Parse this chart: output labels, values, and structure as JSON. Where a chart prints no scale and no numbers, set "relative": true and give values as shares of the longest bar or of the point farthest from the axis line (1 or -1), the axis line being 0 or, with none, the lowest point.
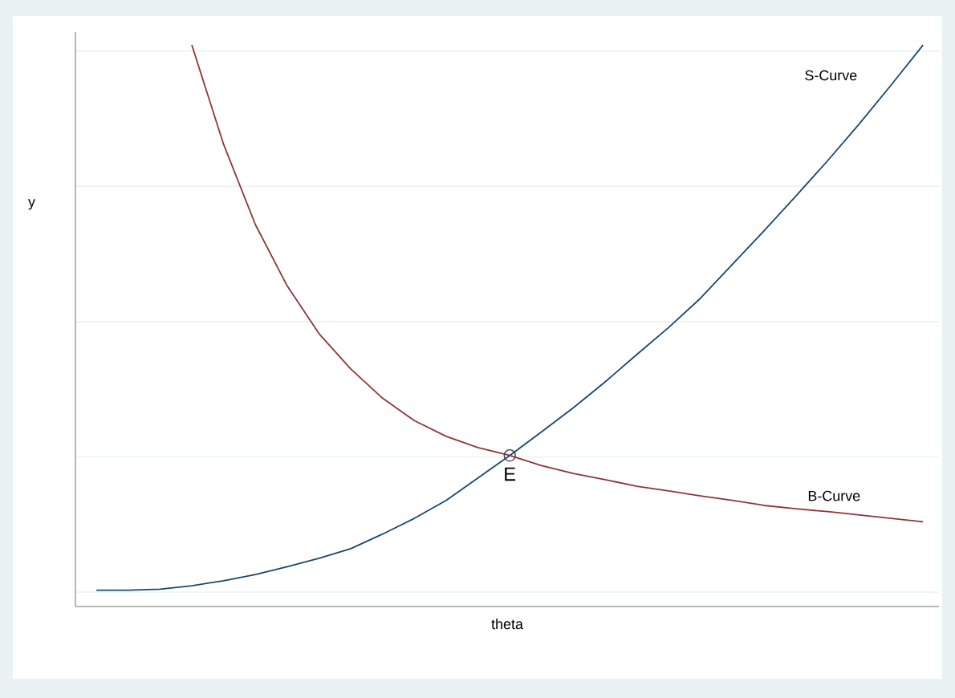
{
  "chart_data": {
    "type": "line",
    "relative": true,
    "xlabel": "theta",
    "ylabel": "y",
    "grid": "y",
    "categories": [
      null,
      null,
      null,
      null,
      null,
      null,
      null,
      null,
      null,
      null,
      null,
      null,
      null,
      null,
      null,
      null,
      null,
      null,
      null,
      null,
      null,
      null,
      null,
      null,
      null,
      null,
      null
    ],
    "series": [
      {
        "name": "S-Curve",
        "color": "#1a476f",
        "values": [
          0.029,
          0.029,
          0.031,
          0.037,
          0.046,
          0.057,
          0.071,
          0.086,
          0.103,
          0.129,
          0.157,
          0.189,
          0.229,
          0.269,
          0.311,
          0.354,
          0.4,
          0.449,
          0.497,
          0.549,
          0.609,
          0.669,
          0.731,
          0.794,
          0.86,
          0.929,
          1
        ]
      },
      {
        "name": "B-Curve",
        "color": "#90353b",
        "values": [
          null,
          null,
          null,
          1,
          0.823,
          0.68,
          0.571,
          0.486,
          0.423,
          0.371,
          0.331,
          0.303,
          0.283,
          0.269,
          0.251,
          0.237,
          0.226,
          0.214,
          0.206,
          0.197,
          0.189,
          0.18,
          0.174,
          0.169,
          0.163,
          0.157,
          0.151
        ]
      }
    ],
    "annotations": [
      {
        "text": "E",
        "y": 0.269
      }
    ]
  }
}
